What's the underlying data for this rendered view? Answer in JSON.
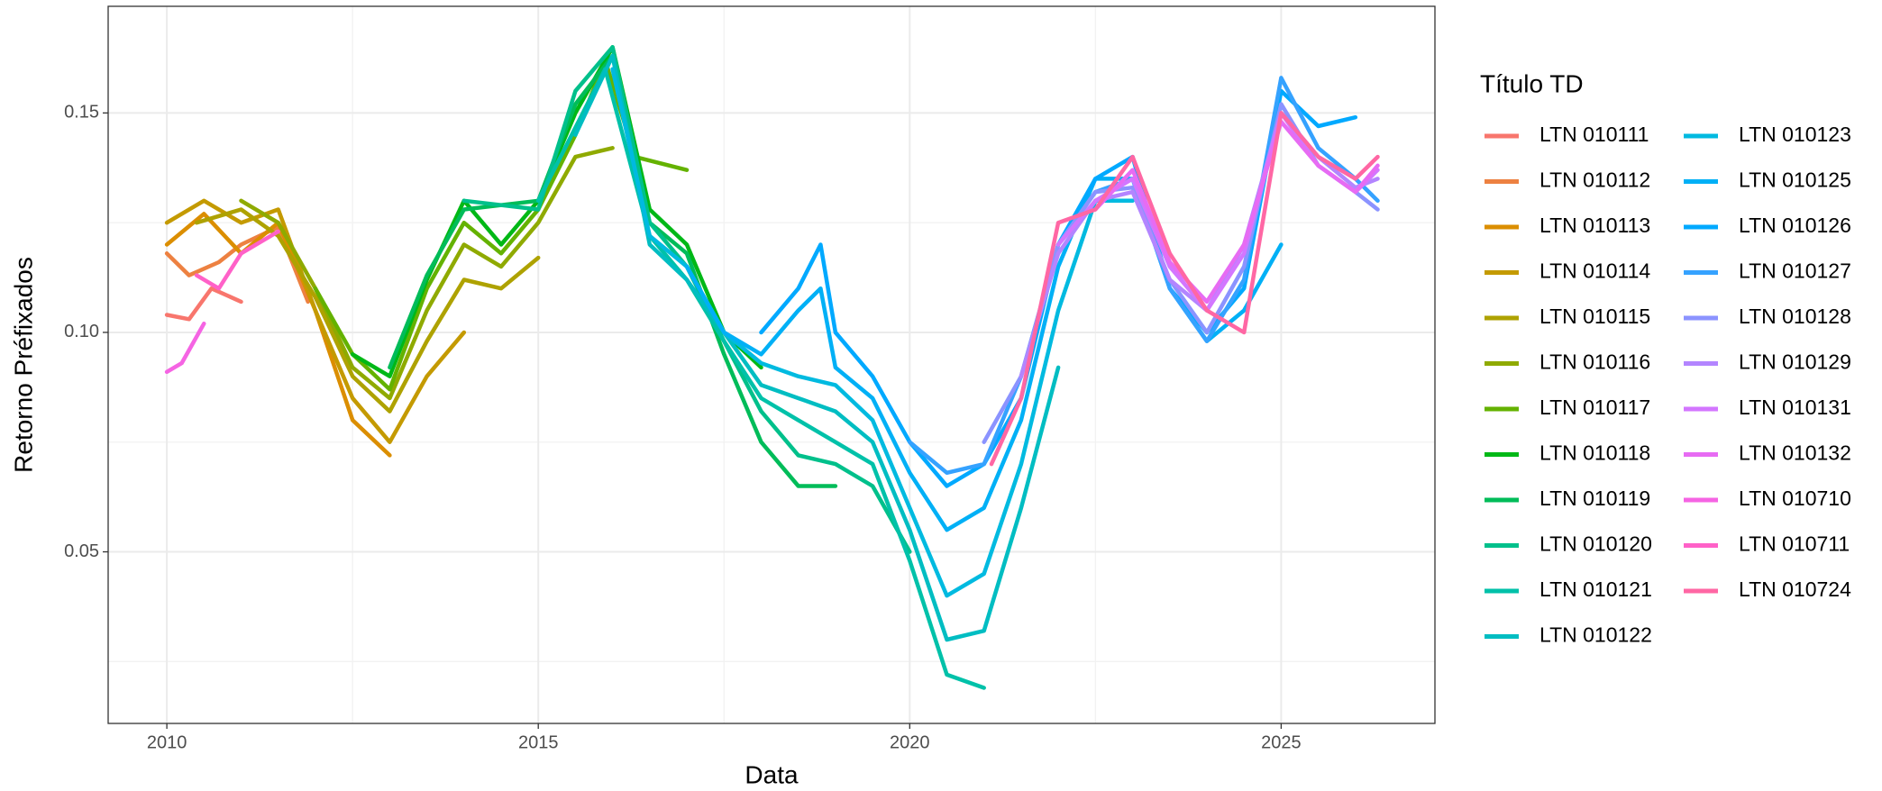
{
  "chart_data": {
    "type": "line",
    "x_label": "Data",
    "y_label": "Retorno Préfixados",
    "legend_title": "Título TD",
    "xlim": [
      2009.21,
      2027.07
    ],
    "ylim": [
      0.0109,
      0.1743
    ],
    "xticks": [
      2010,
      2015,
      2020,
      2025
    ],
    "yticks": [
      0.05,
      {
        "value": 0.1,
        "label": "0.10"
      },
      0.15
    ],
    "x_minor_ticks": [
      2012.5,
      2017.5,
      2022.5
    ],
    "y_minor_ticks": [
      0.025,
      0.075,
      0.125
    ],
    "grid": true,
    "legend": "right",
    "series": [
      {
        "name": "LTN 010111",
        "color": "#F8766D",
        "x": [
          2010,
          2010.3,
          2010.6,
          2011
        ],
        "values": [
          0.104,
          0.103,
          0.11,
          0.107
        ]
      },
      {
        "name": "LTN 010112",
        "color": "#ED8141",
        "x": [
          2010,
          2010.3,
          2010.7,
          2011,
          2011.5,
          2011.9
        ],
        "values": [
          0.118,
          0.113,
          0.116,
          0.12,
          0.124,
          0.107
        ]
      },
      {
        "name": "LTN 010113",
        "color": "#DB8E00",
        "x": [
          2010,
          2010.5,
          2011,
          2011.5,
          2012,
          2012.5,
          2013
        ],
        "values": [
          0.12,
          0.127,
          0.118,
          0.125,
          0.105,
          0.08,
          0.072
        ]
      },
      {
        "name": "LTN 010114",
        "color": "#C49A00",
        "x": [
          2010,
          2010.5,
          2011,
          2011.5,
          2012,
          2012.5,
          2013,
          2013.5,
          2014
        ],
        "values": [
          0.125,
          0.13,
          0.125,
          0.128,
          0.105,
          0.085,
          0.075,
          0.09,
          0.1
        ]
      },
      {
        "name": "LTN 010115",
        "color": "#AEA200",
        "x": [
          2010.4,
          2011,
          2011.5,
          2012,
          2012.5,
          2013,
          2013.5,
          2014,
          2014.5,
          2015
        ],
        "values": [
          0.125,
          0.128,
          0.122,
          0.108,
          0.09,
          0.082,
          0.098,
          0.112,
          0.11,
          0.117
        ]
      },
      {
        "name": "LTN 010116",
        "color": "#8FAA00",
        "x": [
          2011,
          2011.5,
          2012,
          2012.5,
          2013,
          2013.5,
          2014,
          2014.5,
          2015,
          2015.5,
          2016
        ],
        "values": [
          0.13,
          0.125,
          0.11,
          0.092,
          0.085,
          0.105,
          0.12,
          0.115,
          0.125,
          0.14,
          0.142
        ]
      },
      {
        "name": "LTN 010117",
        "color": "#64B200",
        "x": [
          2012,
          2012.5,
          2013,
          2013.5,
          2014,
          2014.5,
          2015,
          2015.5,
          2015.9,
          2016.3,
          2017
        ],
        "values": [
          0.11,
          0.095,
          0.087,
          0.11,
          0.125,
          0.118,
          0.128,
          0.145,
          0.162,
          0.14,
          0.137
        ]
      },
      {
        "name": "LTN 010118",
        "color": "#00B816",
        "x": [
          2012.5,
          2013,
          2013.5,
          2014,
          2014.5,
          2015,
          2015.5,
          2016,
          2016.5,
          2017,
          2017.5,
          2018
        ],
        "values": [
          0.095,
          0.09,
          0.112,
          0.13,
          0.12,
          0.13,
          0.15,
          0.165,
          0.128,
          0.12,
          0.1,
          0.092
        ]
      },
      {
        "name": "LTN 010119",
        "color": "#00BC59",
        "x": [
          2013,
          2013.5,
          2014,
          2015,
          2015.5,
          2016,
          2016.5,
          2017,
          2017.5,
          2018,
          2018.5,
          2019
        ],
        "values": [
          0.092,
          0.113,
          0.128,
          0.13,
          0.152,
          0.163,
          0.125,
          0.118,
          0.095,
          0.075,
          0.065,
          0.065
        ]
      },
      {
        "name": "LTN 010120",
        "color": "#00C08B",
        "x": [
          2014,
          2015,
          2015.5,
          2016,
          2016.5,
          2017,
          2017.5,
          2018,
          2018.5,
          2019,
          2019.5,
          2020
        ],
        "values": [
          0.13,
          0.128,
          0.155,
          0.165,
          0.125,
          0.115,
          0.098,
          0.082,
          0.072,
          0.07,
          0.065,
          0.05
        ]
      },
      {
        "name": "LTN 010121",
        "color": "#00C1A9",
        "x": [
          2015,
          2015.9,
          2016.5,
          2017,
          2017.5,
          2018,
          2018.5,
          2019,
          2019.5,
          2020,
          2020.5,
          2021
        ],
        "values": [
          0.13,
          0.16,
          0.122,
          0.112,
          0.098,
          0.085,
          0.08,
          0.075,
          0.07,
          0.048,
          0.022,
          0.019
        ]
      },
      {
        "name": "LTN 010122",
        "color": "#00BDC2",
        "x": [
          2015.5,
          2016,
          2016.5,
          2017,
          2017.5,
          2018,
          2018.5,
          2019,
          2019.5,
          2020,
          2020.5,
          2021,
          2021.5,
          2022
        ],
        "values": [
          0.145,
          0.163,
          0.12,
          0.112,
          0.1,
          0.088,
          0.085,
          0.082,
          0.075,
          0.055,
          0.03,
          0.032,
          0.06,
          0.092
        ]
      },
      {
        "name": "LTN 010123",
        "color": "#00BAE0",
        "x": [
          2016,
          2016.5,
          2017,
          2017.5,
          2018,
          2018.5,
          2019,
          2019.5,
          2020,
          2020.5,
          2021,
          2021.5,
          2022,
          2022.5,
          2023
        ],
        "values": [
          0.16,
          0.122,
          0.115,
          0.1,
          0.093,
          0.09,
          0.088,
          0.08,
          0.06,
          0.04,
          0.045,
          0.07,
          0.105,
          0.13,
          0.13
        ]
      },
      {
        "name": "LTN 010125",
        "color": "#00B0F6",
        "x": [
          2017,
          2017.5,
          2018,
          2018.5,
          2018.8,
          2019,
          2019.5,
          2020,
          2020.5,
          2021,
          2021.5,
          2022,
          2022.5,
          2023,
          2023.5,
          2024,
          2024.5,
          2025
        ],
        "values": [
          0.115,
          0.1,
          0.095,
          0.105,
          0.11,
          0.092,
          0.085,
          0.068,
          0.055,
          0.06,
          0.08,
          0.115,
          0.135,
          0.135,
          0.11,
          0.098,
          0.105,
          0.12
        ]
      },
      {
        "name": "LTN 010126",
        "color": "#00A9FF",
        "x": [
          2018,
          2018.5,
          2018.8,
          2019,
          2019.5,
          2020,
          2020.5,
          2021,
          2021.5,
          2022,
          2022.5,
          2023,
          2023.5,
          2024,
          2024.5,
          2025,
          2025.5,
          2026
        ],
        "values": [
          0.1,
          0.11,
          0.12,
          0.1,
          0.09,
          0.075,
          0.065,
          0.07,
          0.085,
          0.12,
          0.135,
          0.14,
          0.11,
          0.1,
          0.11,
          0.155,
          0.147,
          0.149
        ]
      },
      {
        "name": "LTN 010127",
        "color": "#35A2FF",
        "x": [
          2020,
          2020.5,
          2021,
          2021.5,
          2022,
          2022.5,
          2023,
          2023.5,
          2024,
          2024.5,
          2025,
          2025.5,
          2026,
          2026.3
        ],
        "values": [
          0.075,
          0.068,
          0.07,
          0.09,
          0.12,
          0.132,
          0.135,
          0.11,
          0.098,
          0.112,
          0.158,
          0.142,
          0.135,
          0.13
        ]
      },
      {
        "name": "LTN 010128",
        "color": "#8B93FF",
        "x": [
          2021,
          2021.5,
          2022,
          2022.5,
          2023,
          2023.5,
          2024,
          2024.5,
          2025,
          2025.5,
          2026,
          2026.3
        ],
        "values": [
          0.075,
          0.09,
          0.12,
          0.132,
          0.133,
          0.112,
          0.1,
          0.115,
          0.152,
          0.138,
          0.132,
          0.128
        ]
      },
      {
        "name": "LTN 010129",
        "color": "#B385FF",
        "x": [
          2021.5,
          2022,
          2022.5,
          2023,
          2023.5,
          2024,
          2024.5,
          2025,
          2025.5,
          2026,
          2026.3
        ],
        "values": [
          0.09,
          0.118,
          0.13,
          0.132,
          0.112,
          0.105,
          0.12,
          0.15,
          0.14,
          0.133,
          0.135
        ]
      },
      {
        "name": "LTN 010131",
        "color": "#D376FF",
        "x": [
          2022,
          2022.5,
          2023,
          2023.5,
          2024,
          2024.5,
          2025,
          2025.5,
          2026,
          2026.3
        ],
        "values": [
          0.12,
          0.13,
          0.135,
          0.115,
          0.105,
          0.118,
          0.15,
          0.138,
          0.132,
          0.137
        ]
      },
      {
        "name": "LTN 010132",
        "color": "#E76BF3",
        "x": [
          2022.5,
          2023,
          2023.5,
          2024,
          2024.5,
          2025,
          2025.5,
          2026,
          2026.3
        ],
        "values": [
          0.128,
          0.137,
          0.116,
          0.107,
          0.12,
          0.148,
          0.138,
          0.132,
          0.138
        ]
      },
      {
        "name": "LTN 010710",
        "color": "#F564E3",
        "x": [
          2010,
          2010.2,
          2010.5
        ],
        "values": [
          0.091,
          0.093,
          0.102
        ]
      },
      {
        "name": "LTN 010711",
        "color": "#FF61C8",
        "x": [
          2010.4,
          2010.7,
          2011,
          2011.5
        ],
        "values": [
          0.113,
          0.11,
          0.118,
          0.123
        ]
      },
      {
        "name": "LTN 010724",
        "color": "#FF67A4",
        "x": [
          2021.1,
          2021.5,
          2022,
          2022.5,
          2023,
          2023.5,
          2024,
          2024.5,
          2025,
          2025.5,
          2026,
          2026.3
        ],
        "values": [
          0.07,
          0.085,
          0.125,
          0.128,
          0.14,
          0.118,
          0.105,
          0.1,
          0.15,
          0.14,
          0.135,
          0.14
        ]
      }
    ]
  }
}
